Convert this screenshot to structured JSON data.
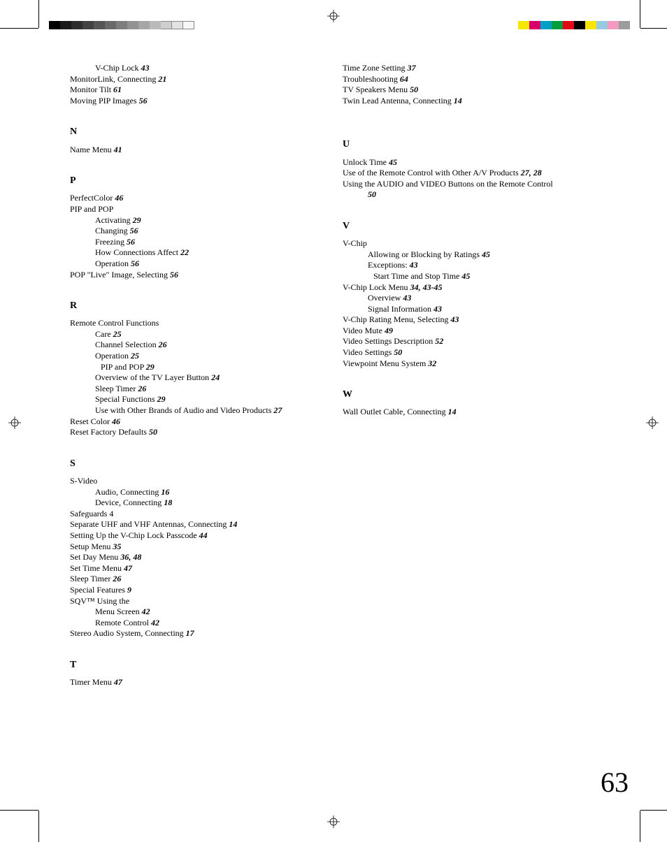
{
  "page_number": "63",
  "gray_bar": [
    "#000000",
    "#1a1a1a",
    "#2e2e2e",
    "#424242",
    "#565656",
    "#6a6a6a",
    "#7e7e7e",
    "#929292",
    "#a6a6a6",
    "#bababa",
    "#cecece",
    "#e2e2e2",
    "#f6f6f6"
  ],
  "color_bar_right": [
    "#f5e800",
    "#d9006c",
    "#00a0c6",
    "#009e3d",
    "#e30613",
    "#000000",
    "#f9e600",
    "#98cbe0",
    "#f29abf",
    "#9c9c9c"
  ],
  "left_column": [
    {
      "type": "sub",
      "text": "V-Chip Lock",
      "page": "43"
    },
    {
      "type": "entry",
      "text": "MonitorLink, Connecting",
      "page": "21"
    },
    {
      "type": "entry",
      "text": "Monitor Tilt",
      "page": "61"
    },
    {
      "type": "entry",
      "text": "Moving PIP Images",
      "page": "56"
    },
    {
      "type": "letter",
      "text": "N"
    },
    {
      "type": "entry",
      "text": "Name Menu",
      "page": "41"
    },
    {
      "type": "letter",
      "text": "P"
    },
    {
      "type": "entry",
      "text": "PerfectColor",
      "page": "46"
    },
    {
      "type": "entry",
      "text": "PIP and POP"
    },
    {
      "type": "sub",
      "text": "Activating",
      "page": "29"
    },
    {
      "type": "sub",
      "text": "Changing",
      "page": "56"
    },
    {
      "type": "sub",
      "text": "Freezing",
      "page": "56"
    },
    {
      "type": "sub",
      "text": "How Connections Affect",
      "page": "22"
    },
    {
      "type": "sub",
      "text": "Operation",
      "page": "56"
    },
    {
      "type": "entry",
      "text": "POP \"Live\" Image, Selecting",
      "page": "56"
    },
    {
      "type": "letter",
      "text": "R"
    },
    {
      "type": "entry",
      "text": "Remote Control Functions"
    },
    {
      "type": "sub",
      "text": "Care",
      "page": "25"
    },
    {
      "type": "sub",
      "text": "Channel Selection",
      "page": "26"
    },
    {
      "type": "sub",
      "text": "Operation",
      "page": "25"
    },
    {
      "type": "sub2",
      "text": "PIP and POP",
      "page": "29"
    },
    {
      "type": "sub",
      "text": "Overview of the TV Layer Button",
      "page": "24"
    },
    {
      "type": "sub",
      "text": "Sleep Timer",
      "page": "26"
    },
    {
      "type": "sub",
      "text": "Special Functions",
      "page": "29"
    },
    {
      "type": "sub",
      "text": "Use with Other Brands of Audio and Video Products",
      "page": "27"
    },
    {
      "type": "entry",
      "text": "Reset Color",
      "page": "46"
    },
    {
      "type": "entry",
      "text": "Reset Factory Defaults",
      "page": "50"
    },
    {
      "type": "letter",
      "text": "S"
    },
    {
      "type": "entry",
      "text": "S-Video"
    },
    {
      "type": "sub",
      "text": "Audio, Connecting",
      "page": "16"
    },
    {
      "type": "sub",
      "text": "Device, Connecting",
      "page": "18"
    },
    {
      "type": "entry",
      "text": "Safeguards  4"
    },
    {
      "type": "entry",
      "text": "Separate UHF and VHF Antennas, Connecting",
      "page": "14"
    },
    {
      "type": "entry",
      "text": "Setting Up the V-Chip Lock Passcode",
      "page": "44"
    },
    {
      "type": "entry",
      "text": "Setup Menu",
      "page": "35"
    },
    {
      "type": "entry",
      "text": "Set Day Menu",
      "page": "36, 48",
      "nospace": true
    },
    {
      "type": "entry",
      "text": "Set Time Menu",
      "page": "47"
    },
    {
      "type": "entry",
      "text": "Sleep Timer",
      "page": "26"
    },
    {
      "type": "entry",
      "text": "Special Features",
      "page": "9"
    },
    {
      "type": "entry",
      "text": "SQV™ Using the"
    },
    {
      "type": "sub",
      "text": "Menu Screen",
      "page": "42"
    },
    {
      "type": "sub",
      "text": "Remote Control",
      "page": "42"
    },
    {
      "type": "entry",
      "text": "Stereo Audio System, Connecting",
      "page": "17"
    },
    {
      "type": "letter",
      "text": "T"
    },
    {
      "type": "entry",
      "text": "Timer Menu",
      "page": "47"
    }
  ],
  "right_column": [
    {
      "type": "entry",
      "text": "Time Zone Setting",
      "page": "37",
      "nospace": true
    },
    {
      "type": "entry",
      "text": "Troubleshooting",
      "page": "64"
    },
    {
      "type": "entry",
      "text": "TV Speakers Menu",
      "page": "50"
    },
    {
      "type": "entry",
      "text": "Twin Lead Antenna, Connecting",
      "page": "14"
    },
    {
      "type": "letter-pad",
      "text": "U"
    },
    {
      "type": "entry",
      "text": "Unlock Time",
      "page": "45"
    },
    {
      "type": "entry",
      "text": "Use of the Remote Control with Other A/V Products",
      "page": "27, 28"
    },
    {
      "type": "entry",
      "text": "Using the AUDIO and VIDEO Buttons on the Remote Control"
    },
    {
      "type": "sub",
      "text": "",
      "page": "50"
    },
    {
      "type": "letter",
      "text": "V"
    },
    {
      "type": "entry",
      "text": "V-Chip"
    },
    {
      "type": "sub",
      "text": "Allowing or Blocking  by Ratings",
      "page": "45"
    },
    {
      "type": "sub",
      "text": "Exceptions:",
      "page": "43"
    },
    {
      "type": "sub2",
      "text": "Start Time and Stop Time",
      "page": "45"
    },
    {
      "type": "entry",
      "text": "V-Chip Lock Menu",
      "page": "34, 43-45"
    },
    {
      "type": "sub",
      "text": "Overview",
      "page": "43"
    },
    {
      "type": "sub",
      "text": "Signal Information",
      "page": "43"
    },
    {
      "type": "entry",
      "text": "V-Chip Rating Menu, Selecting",
      "page": "43"
    },
    {
      "type": "entry",
      "text": "Video Mute",
      "page": "49"
    },
    {
      "type": "entry",
      "text": "Video Settings Description",
      "page": "52"
    },
    {
      "type": "entry",
      "text": "Video Settings",
      "page": "50"
    },
    {
      "type": "entry",
      "text": "Viewpoint Menu System",
      "page": "32",
      "nospace": true
    },
    {
      "type": "letter",
      "text": "W"
    },
    {
      "type": "entry",
      "text": "Wall Outlet Cable, Connecting",
      "page": "14",
      "nospace": true
    }
  ]
}
